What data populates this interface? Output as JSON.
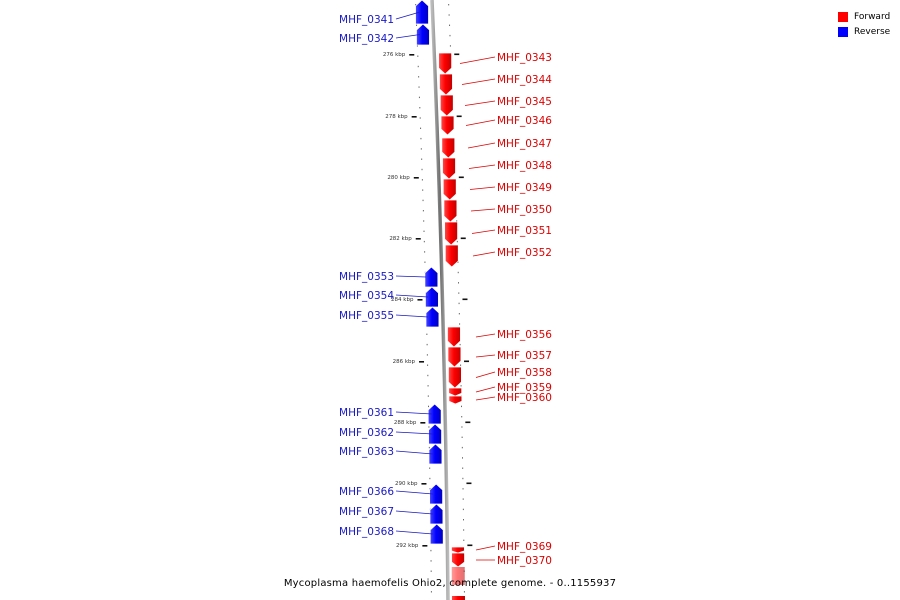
{
  "caption": "Mycoplasma haemofelis Ohio2, complete genome. - 0..1155937",
  "legend": [
    {
      "label": "Forward",
      "color": "#ff0000"
    },
    {
      "label": "Reverse",
      "color": "#0000ff"
    }
  ],
  "colors": {
    "forward": "#ff0000",
    "reverse": "#0000ff",
    "forward_label": "#dd0000",
    "reverse_label": "#1818c8"
  },
  "scale_ticks": [
    "276 kbp",
    "278 kbp",
    "280 kbp",
    "282 kbp",
    "284 kbp",
    "286 kbp",
    "288 kbp",
    "290 kbp",
    "292 kbp"
  ],
  "genes": [
    {
      "name": "MHF_0341",
      "strand": "reverse"
    },
    {
      "name": "MHF_0342",
      "strand": "reverse"
    },
    {
      "name": "MHF_0343",
      "strand": "forward"
    },
    {
      "name": "MHF_0344",
      "strand": "forward"
    },
    {
      "name": "MHF_0345",
      "strand": "forward"
    },
    {
      "name": "MHF_0346",
      "strand": "forward"
    },
    {
      "name": "MHF_0347",
      "strand": "forward"
    },
    {
      "name": "MHF_0348",
      "strand": "forward"
    },
    {
      "name": "MHF_0349",
      "strand": "forward"
    },
    {
      "name": "MHF_0350",
      "strand": "forward"
    },
    {
      "name": "MHF_0351",
      "strand": "forward"
    },
    {
      "name": "MHF_0352",
      "strand": "forward"
    },
    {
      "name": "MHF_0353",
      "strand": "reverse"
    },
    {
      "name": "MHF_0354",
      "strand": "reverse"
    },
    {
      "name": "MHF_0355",
      "strand": "reverse"
    },
    {
      "name": "MHF_0356",
      "strand": "forward"
    },
    {
      "name": "MHF_0357",
      "strand": "forward"
    },
    {
      "name": "MHF_0358",
      "strand": "forward"
    },
    {
      "name": "MHF_0359",
      "strand": "forward"
    },
    {
      "name": "MHF_0360",
      "strand": "forward"
    },
    {
      "name": "MHF_0361",
      "strand": "reverse"
    },
    {
      "name": "MHF_0362",
      "strand": "reverse"
    },
    {
      "name": "MHF_0363",
      "strand": "reverse"
    },
    {
      "name": "MHF_0366",
      "strand": "reverse"
    },
    {
      "name": "MHF_0367",
      "strand": "reverse"
    },
    {
      "name": "MHF_0368",
      "strand": "reverse"
    },
    {
      "name": "MHF_0369",
      "strand": "forward"
    },
    {
      "name": "MHF_0370",
      "strand": "forward"
    }
  ]
}
